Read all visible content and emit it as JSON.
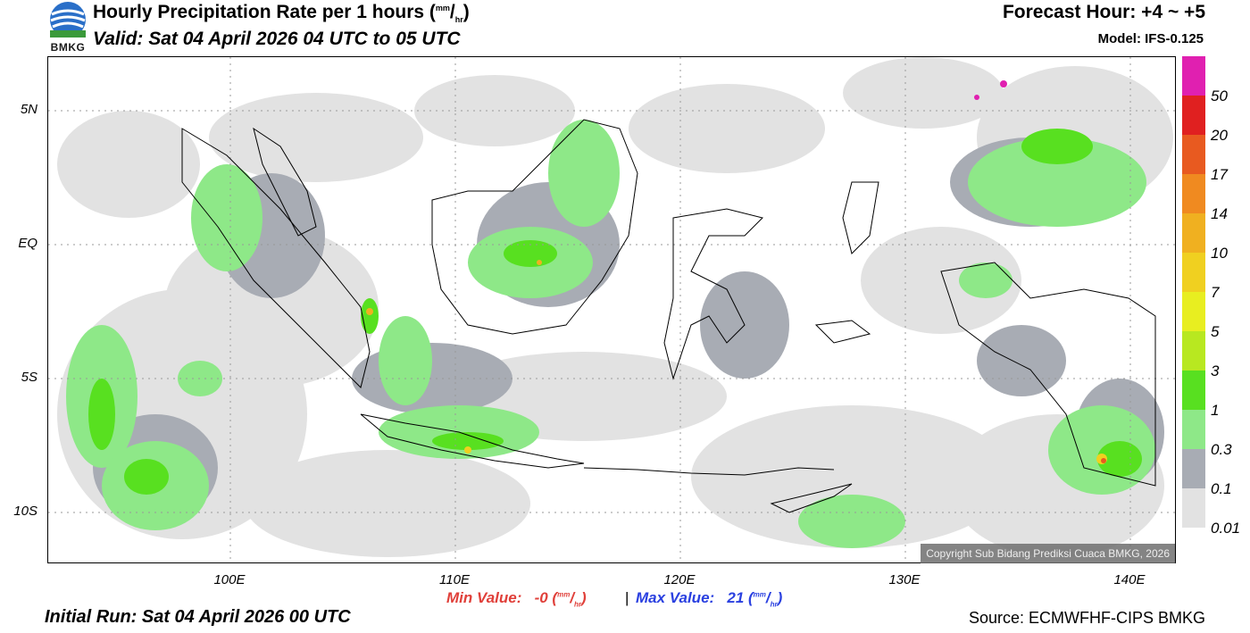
{
  "header": {
    "title_main": "Hourly Precipitation Rate per 1 hours (",
    "title_unit_num": "mm",
    "title_unit_den": "hr",
    "title_close": ")",
    "valid": "Valid: Sat 04 April 2026 04 UTC to 05 UTC",
    "forecast_hour": "Forecast Hour: +4 ~ +5",
    "model": "Model: IFS-0.125",
    "logo_text": "BMKG"
  },
  "axes": {
    "lat_labels": [
      "5N",
      "EQ",
      "5S",
      "10S"
    ],
    "lon_labels": [
      "100E",
      "110E",
      "120E",
      "130E",
      "140E"
    ]
  },
  "footer": {
    "min_label": "Min Value:",
    "min_value": "-0",
    "max_label": "Max Value:",
    "max_value": "21",
    "unit_num": "mm",
    "unit_den": "hr",
    "initial_run": "Initial Run: Sat 04 April 2026 00 UTC",
    "source": "Source: ECMWFHF-CIPS BMKG",
    "copyright": "Copyright Sub Bidang Prediksi Cuaca BMKG, 2026"
  },
  "colorbar": {
    "labels": [
      "50",
      "20",
      "17",
      "14",
      "10",
      "7",
      "5",
      "3",
      "1",
      "0.3",
      "0.1",
      "0.01"
    ],
    "colors": [
      "#e020b0",
      "#e02020",
      "#e85a20",
      "#f08a20",
      "#f0b020",
      "#f0d020",
      "#e8ee20",
      "#b8e820",
      "#58e020",
      "#8ee888",
      "#a8acb4",
      "#e2e2e2"
    ]
  }
}
